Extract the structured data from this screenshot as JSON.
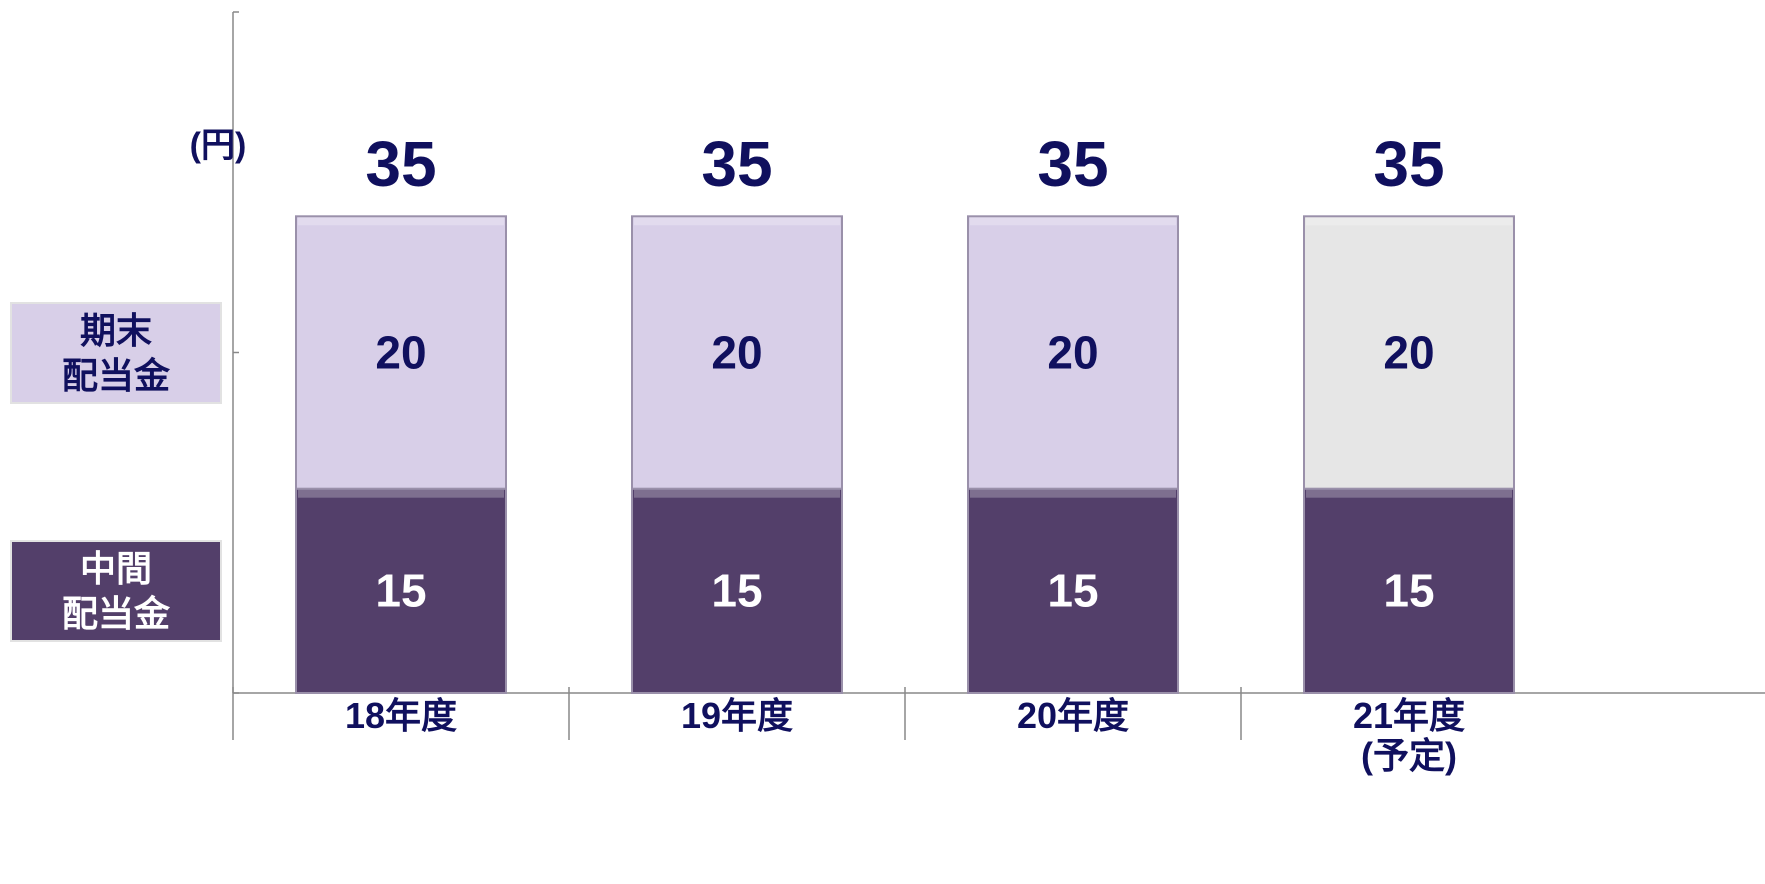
{
  "chart_data": {
    "type": "stacked_bar",
    "y_unit_label": "(円)",
    "categories": [
      "18年度",
      "19年度",
      "20年度",
      "21年度\n(予定)"
    ],
    "series": [
      {
        "name": "中間\n配当金",
        "color": "#533f6a",
        "label_color": "#ffffff",
        "values": [
          15,
          15,
          15,
          15
        ]
      },
      {
        "name": "期末\n配当金",
        "color": "#d8cfe8",
        "colors": [
          "#d8cfe8",
          "#d8cfe8",
          "#d8cfe8",
          "#e6e6e6"
        ],
        "label_color": "#10105e",
        "values": [
          20,
          20,
          20,
          20
        ]
      }
    ],
    "totals": [
      35,
      35,
      35,
      35
    ],
    "ylim": [
      0,
      50
    ],
    "yticks": [
      0,
      25,
      50
    ]
  }
}
